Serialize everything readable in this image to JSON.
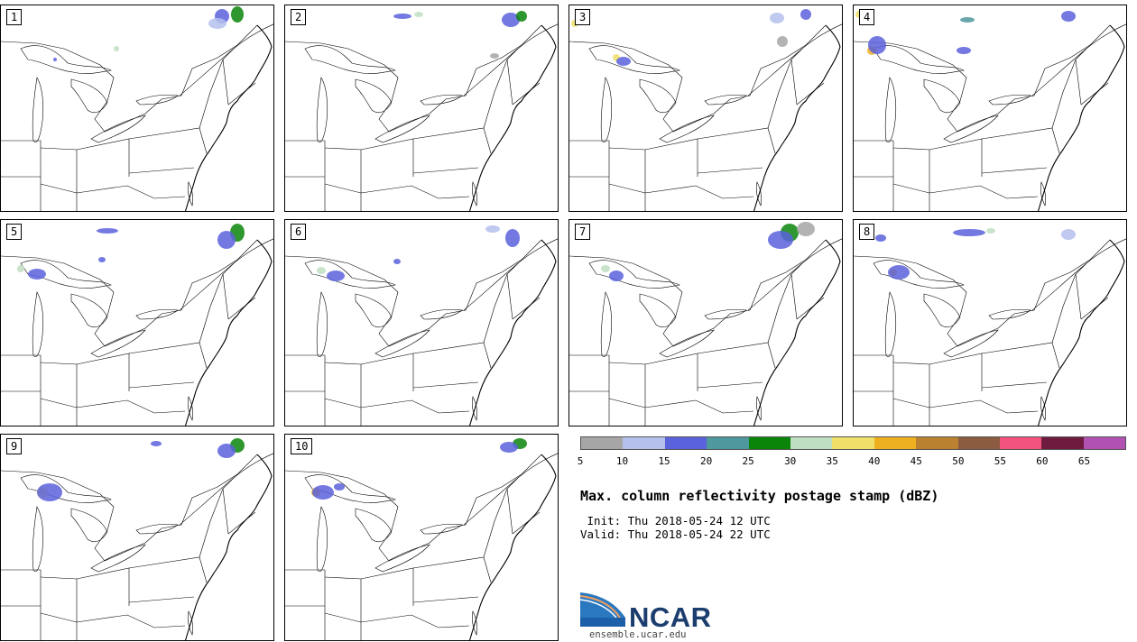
{
  "panels": [
    {
      "label": "1"
    },
    {
      "label": "2"
    },
    {
      "label": "3"
    },
    {
      "label": "4"
    },
    {
      "label": "5"
    },
    {
      "label": "6"
    },
    {
      "label": "7"
    },
    {
      "label": "8"
    },
    {
      "label": "9"
    },
    {
      "label": "10"
    }
  ],
  "colorbar": {
    "ticks": [
      "5",
      "10",
      "15",
      "20",
      "25",
      "30",
      "35",
      "40",
      "45",
      "50",
      "55",
      "60",
      "65"
    ],
    "colors": [
      "#a6a6a6",
      "#b5c0ec",
      "#5a62dc",
      "#4f989e",
      "#0a850a",
      "#bfdfc2",
      "#efe06a",
      "#efb020",
      "#b98130",
      "#8c5c40",
      "#f2537f",
      "#6e1b3f",
      "#b151b1"
    ]
  },
  "title": "Max. column reflectivity postage stamp (dBZ)",
  "init_line": " Init: Thu 2018-05-24 12 UTC",
  "valid_line": "Valid: Thu 2018-05-24 22 UTC",
  "logo": {
    "name": "NCAR",
    "icon": "ncar-logo-icon"
  },
  "website": "ensemble.ucar.edu"
}
